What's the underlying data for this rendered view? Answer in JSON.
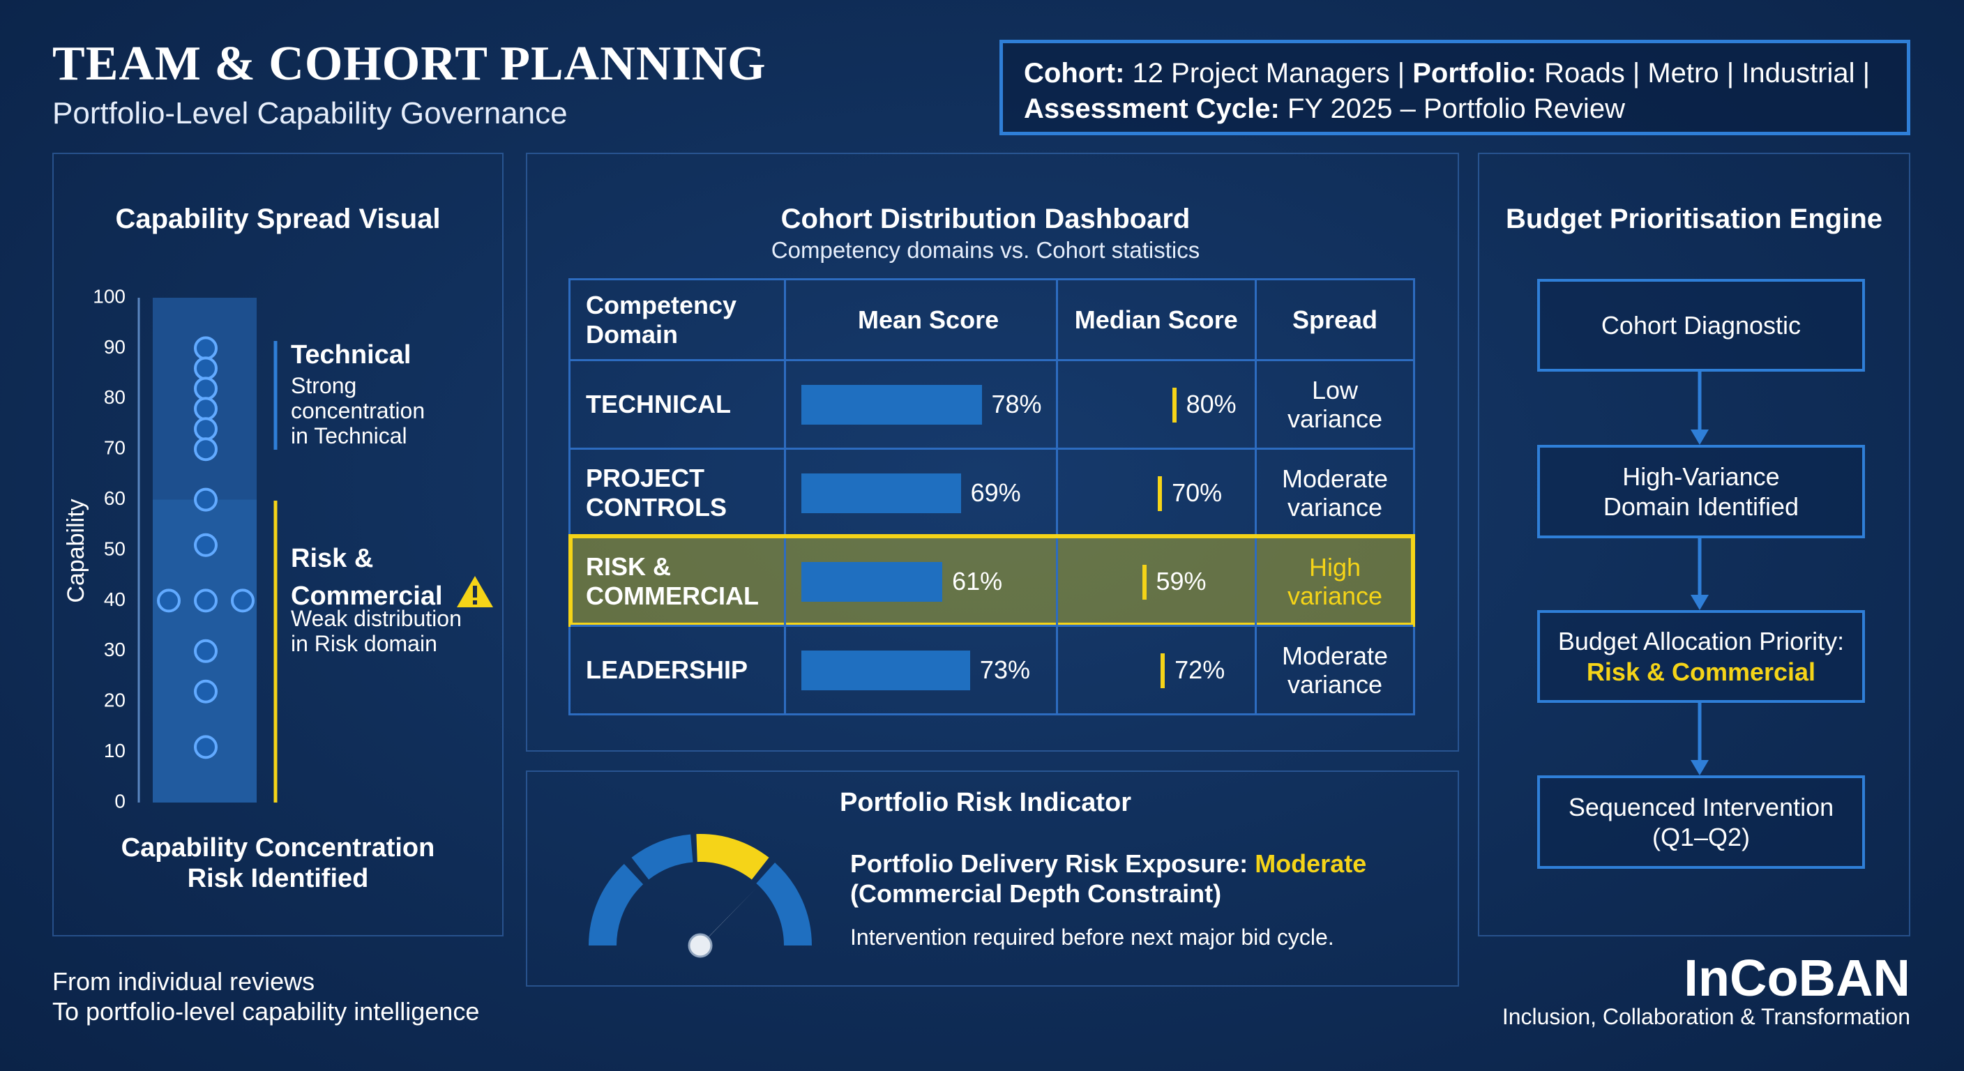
{
  "header": {
    "title": "TEAM & COHORT PLANNING",
    "subtitle": "Portfolio-Level Capability Governance"
  },
  "cohort_box": {
    "cohort_label": "Cohort:",
    "cohort": "12 Project Managers |",
    "portfolio_label": "Portfolio:",
    "portfolio": "Roads | Metro | Industrial |",
    "cycle_label": "Assessment Cycle:",
    "cycle": "FY 2025 – Portfolio Review"
  },
  "capability_spread": {
    "title": "Capability Spread Visual",
    "axis_label": "Capability",
    "ylim": [
      0,
      100
    ],
    "yticks": [
      0,
      10,
      20,
      30,
      40,
      50,
      60,
      70,
      80,
      90,
      100
    ],
    "values": [
      90,
      86,
      82,
      78,
      74,
      70,
      60,
      51,
      40,
      40,
      40,
      30,
      22,
      11
    ],
    "technical": {
      "title": "Technical",
      "lines": [
        "Strong",
        "concentration",
        "in Technical"
      ]
    },
    "risk": {
      "title_lines": [
        "Risk &",
        "Commercial"
      ],
      "lines": [
        "Weak distribution",
        "in Risk domain"
      ]
    },
    "footer_lines": [
      "Capability Concentration",
      "Risk Identified"
    ]
  },
  "dashboard": {
    "title": "Cohort Distribution Dashboard",
    "subtitle": "Competency domains vs. Cohort statistics",
    "headers": [
      "Competency Domain",
      "Mean Score",
      "Median Score",
      "Spread"
    ],
    "domains": [
      "TECHNICAL",
      "PROJECT CONTROLS",
      "RISK & COMMERCIAL",
      "LEADERSHIP"
    ],
    "mean": {
      "values": [
        78,
        69,
        61,
        73
      ],
      "value_labels": [
        "78%",
        "69%",
        "61%",
        "73%"
      ]
    },
    "median": {
      "values": [
        80,
        70,
        59,
        72
      ],
      "value_labels": [
        "80%",
        "70%",
        "59%",
        "72%"
      ]
    },
    "spread": [
      "Low variance",
      "Moderate variance",
      "High variance",
      "Moderate variance"
    ],
    "highlight_row": 2
  },
  "risk_indicator": {
    "title": "Portfolio Risk Indicator",
    "exposure_label": "Portfolio Delivery Risk Exposure:",
    "exposure_level": "Moderate",
    "constraint": "(Commercial Depth Constraint)",
    "note": "Intervention required before next major bid cycle."
  },
  "budget_engine": {
    "title": "Budget Prioritisation Engine",
    "steps": [
      {
        "lines": [
          "Cohort Diagnostic"
        ]
      },
      {
        "lines": [
          "High-Variance",
          "Domain Identified"
        ]
      },
      {
        "lines": [
          "Budget Allocation Priority:"
        ],
        "highlight": "Risk & Commercial"
      },
      {
        "lines": [
          "Sequenced Intervention",
          "(Q1–Q2)"
        ]
      }
    ]
  },
  "footer": {
    "tagline_lines": [
      "From individual reviews",
      "To portfolio-level capability intelligence"
    ],
    "brand": "InCoBAN",
    "brand_tagline": "Inclusion, Collaboration & Transformation"
  }
}
